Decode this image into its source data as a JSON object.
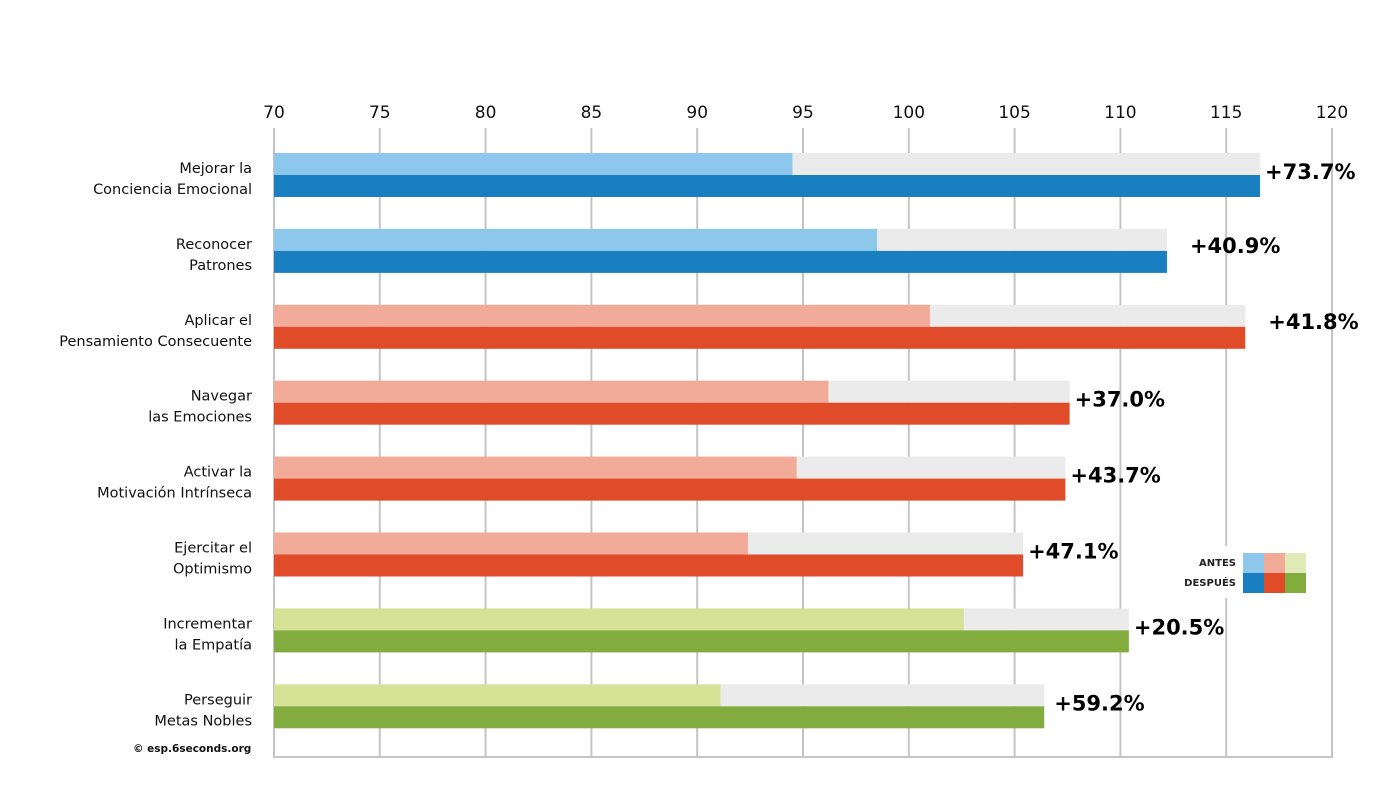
{
  "chart_data": {
    "type": "bar",
    "orientation": "horizontal",
    "xlim": [
      70,
      120
    ],
    "xticks": [
      "70",
      "75",
      "80",
      "85",
      "90",
      "95",
      "100",
      "105",
      "110",
      "115",
      "120"
    ],
    "grid": "vertical",
    "categories": [
      [
        "Mejorar la",
        "Conciencia Emocional"
      ],
      [
        "Reconocer",
        "Patrones"
      ],
      [
        "Aplicar el",
        "Pensamiento Consecuente"
      ],
      [
        "Navegar",
        "las Emociones"
      ],
      [
        "Activar la",
        "Motivación Intrínseca"
      ],
      [
        "Ejercitar el",
        "Optimismo"
      ],
      [
        "Incrementar",
        "la Empatía"
      ],
      [
        "Perseguir",
        "Metas Nobles"
      ]
    ],
    "series": [
      {
        "name": "ANTES",
        "values": [
          94.5,
          98.5,
          101.0,
          96.2,
          94.7,
          92.4,
          102.6,
          91.1
        ]
      },
      {
        "name": "DESPUÉS",
        "values": [
          116.6,
          112.2,
          115.9,
          107.6,
          107.4,
          105.4,
          110.4,
          106.4
        ]
      }
    ],
    "annotations": [
      "+73.7%",
      "+40.9%",
      "+41.8%",
      "+37.0%",
      "+43.7%",
      "+47.1%",
      "+20.5%",
      "+59.2%"
    ],
    "groups": [
      "blue",
      "blue",
      "red",
      "red",
      "red",
      "red",
      "green",
      "green"
    ],
    "colors": {
      "blue": {
        "antes": "#8dc8ec",
        "despues": "#1a7fc1"
      },
      "red": {
        "antes": "#f2ab98",
        "despues": "#e04b29"
      },
      "green": {
        "antes": "#d6e397",
        "despues": "#83ac3f"
      },
      "track": "#ebebeb",
      "grid": "#c4c4c4"
    },
    "legend": {
      "position": "right",
      "labels": [
        "ANTES",
        "DESPUÉS"
      ],
      "antes_colors": [
        "#8dc8ec",
        "#f2ab98",
        "#dfeab8"
      ],
      "despues_colors": [
        "#1a7fc1",
        "#e04b29",
        "#83ac3f"
      ]
    }
  },
  "footer": {
    "copyright": "© esp.6seconds.org"
  }
}
